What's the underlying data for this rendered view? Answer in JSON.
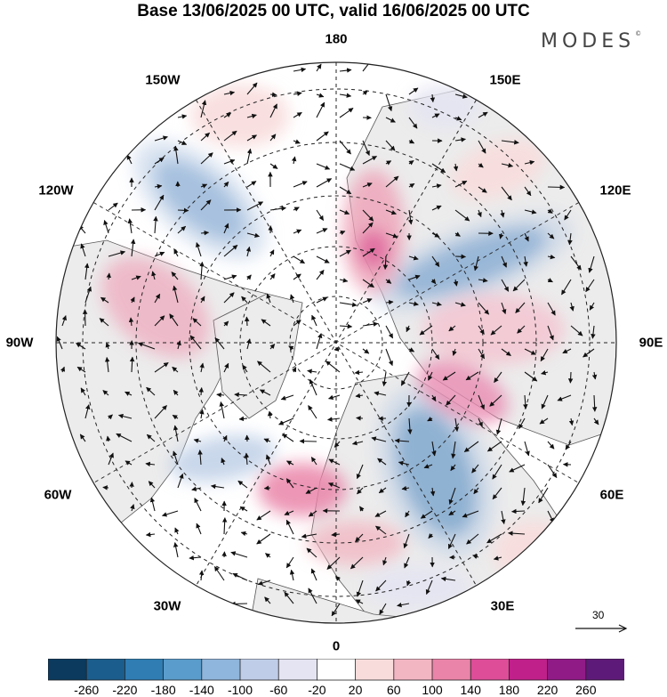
{
  "title": "Base 13/06/2025 00 UTC, valid 16/06/2025 00 UTC",
  "logo": "MODES",
  "logo_mark": "©",
  "longitude_labels": {
    "top": "180",
    "top_right": "150E",
    "right_upper": "120E",
    "right": "90E",
    "right_lower": "60E",
    "bottom_right": "30E",
    "bottom": "0",
    "bottom_left": "30W",
    "left_lower": "60W",
    "left": "90W",
    "left_upper": "120W",
    "top_left": "150W"
  },
  "reference_vector": {
    "label": "30"
  },
  "colorbar": {
    "labels": [
      "-260",
      "-220",
      "-180",
      "-140",
      "-100",
      "-60",
      "-20",
      "20",
      "60",
      "100",
      "140",
      "180",
      "220",
      "260"
    ],
    "colors": [
      "#0b3a5e",
      "#1b5d8c",
      "#2f7db3",
      "#5a9ccb",
      "#8fb6dc",
      "#bfcde8",
      "#e4e4f2",
      "#ffffff",
      "#f8dcdc",
      "#f2b6c2",
      "#ea84a8",
      "#dd4d98",
      "#c0208a",
      "#901a86",
      "#5e1a78"
    ]
  },
  "map": {
    "projection": "north polar stereographic",
    "colors": {
      "land_fill": "#ededed",
      "coast": "#333333",
      "grid": "#222222",
      "arrow": "#111111"
    }
  }
}
